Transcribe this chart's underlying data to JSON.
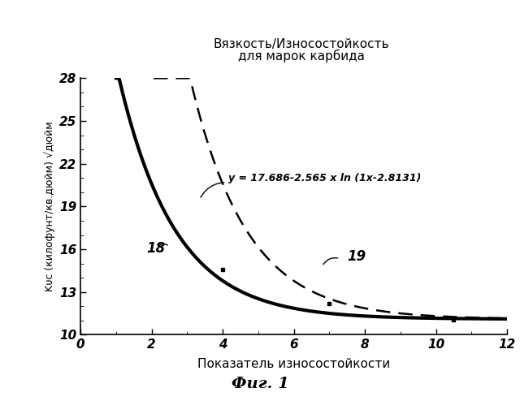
{
  "title_line1": "Вязкость/Износостойкость",
  "title_line2": "для марок карбида",
  "xlabel": "Показатель износостойкости",
  "ylabel": "Kᴜᴄ (килофунт/кв.дюйм) √дюйм",
  "xlim": [
    0,
    12
  ],
  "ylim": [
    10,
    28
  ],
  "yticks": [
    10,
    13,
    16,
    19,
    22,
    25,
    28
  ],
  "xticks": [
    0,
    2,
    4,
    6,
    8,
    10,
    12
  ],
  "equation": "y = 17.686-2.565 x ln (1x-2.8131)",
  "label18": "18",
  "label19": "19",
  "fig_label": "Фиг. 1",
  "data_points_solid": [
    [
      4.0,
      14.6
    ],
    [
      7.0,
      12.2
    ],
    [
      10.5,
      11.05
    ]
  ],
  "bg_color": "#ffffff",
  "line_color_solid": "#000000",
  "line_color_dashed": "#000000",
  "solid_a": 11.1,
  "solid_b": 17.8,
  "solid_c": 0.63,
  "solid_d": 1.0,
  "dashed_a": 11.1,
  "dashed_b": 17.8,
  "dashed_c": 0.63,
  "dashed_d": 3.0
}
